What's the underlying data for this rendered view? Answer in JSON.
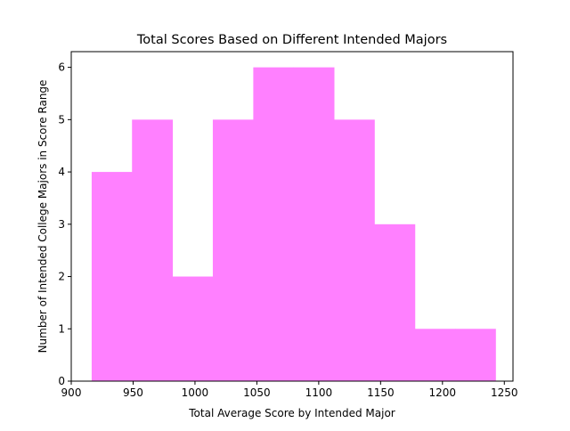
{
  "chart_data": {
    "type": "bar",
    "subtype": "histogram",
    "title": "Total Scores Based on Different Intended Majors",
    "xlabel": "Total Average Score by Intended Major",
    "ylabel": "Number of Intended College Majors in Score Range",
    "xlim": [
      900,
      1257
    ],
    "ylim": [
      0,
      6.3
    ],
    "xticks": [
      900,
      950,
      1000,
      1050,
      1100,
      1150,
      1200,
      1250
    ],
    "yticks": [
      0,
      1,
      2,
      3,
      4,
      5,
      6
    ],
    "bar_color": "#ff80ff",
    "bins": [
      {
        "start": 916.5,
        "end": 949.1,
        "count": 4
      },
      {
        "start": 949.1,
        "end": 981.8,
        "count": 5
      },
      {
        "start": 981.8,
        "end": 1014.4,
        "count": 2
      },
      {
        "start": 1014.4,
        "end": 1047.1,
        "count": 5
      },
      {
        "start": 1047.1,
        "end": 1079.7,
        "count": 6
      },
      {
        "start": 1079.7,
        "end": 1112.4,
        "count": 6
      },
      {
        "start": 1112.4,
        "end": 1145.0,
        "count": 5
      },
      {
        "start": 1145.0,
        "end": 1177.7,
        "count": 3
      },
      {
        "start": 1177.7,
        "end": 1210.3,
        "count": 1
      },
      {
        "start": 1210.3,
        "end": 1242.9,
        "count": 1
      }
    ]
  }
}
